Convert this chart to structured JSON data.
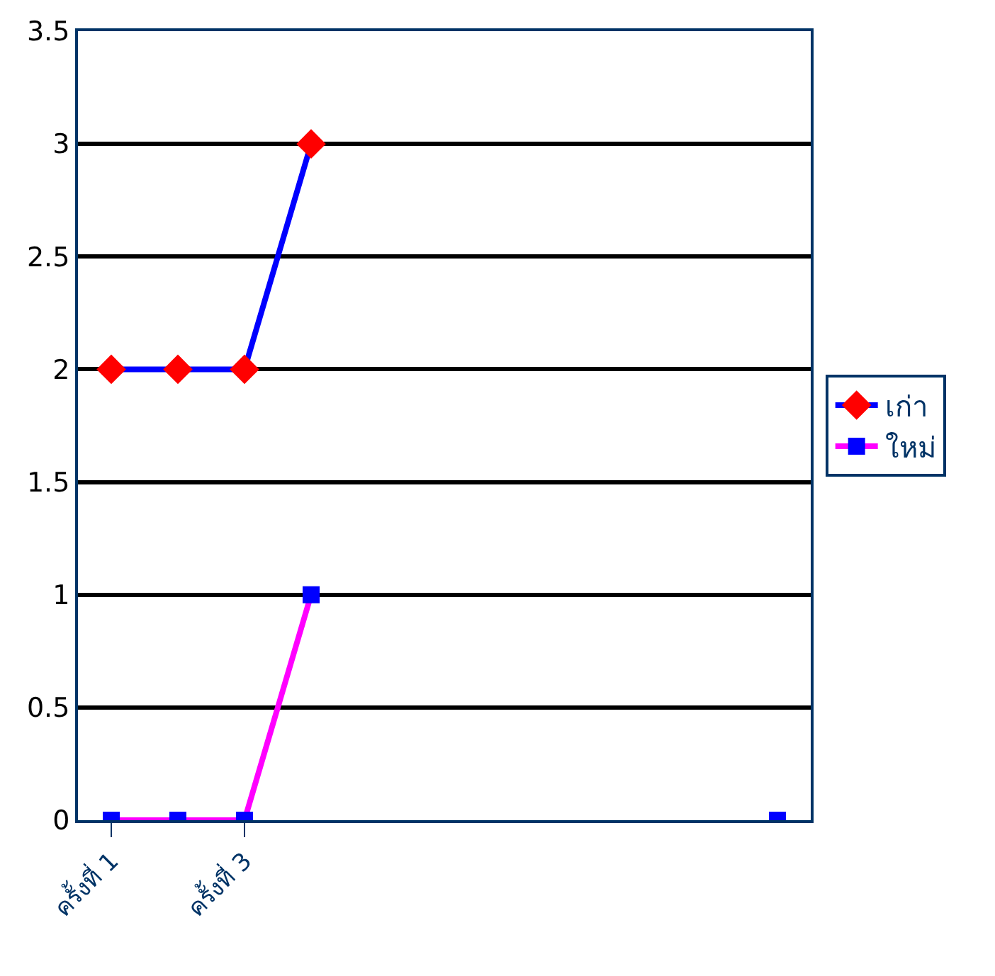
{
  "chart_data": {
    "type": "line",
    "categories": [
      "ครั้งที่ 1",
      null,
      "ครั้งที่ 3",
      null,
      null,
      null,
      null,
      null,
      null,
      null,
      null
    ],
    "series": [
      {
        "name": "เก่า",
        "color": "#0000ff",
        "marker": "diamond",
        "colors": [
          "#ff0000",
          "#ff0000",
          "#ff0000",
          "#ff0000",
          null,
          null,
          null,
          null,
          null,
          null,
          null
        ],
        "values": [
          2,
          2,
          2,
          3,
          null,
          null,
          null,
          null,
          null,
          null,
          null
        ]
      },
      {
        "name": "ใหม่",
        "color": "#ff00ff",
        "marker": "square",
        "colors": [
          "#0000ff",
          "#0000ff",
          "#0000ff",
          "#0000ff",
          null,
          null,
          null,
          null,
          null,
          null,
          "#0000ff"
        ],
        "values": [
          0,
          0,
          0,
          1,
          null,
          null,
          null,
          null,
          null,
          null,
          0
        ]
      }
    ],
    "ylim": [
      0,
      3.5
    ],
    "yticks": [
      0,
      0.5,
      1,
      1.5,
      2,
      2.5,
      3,
      3.5
    ],
    "grid": "y",
    "legend": "right"
  }
}
